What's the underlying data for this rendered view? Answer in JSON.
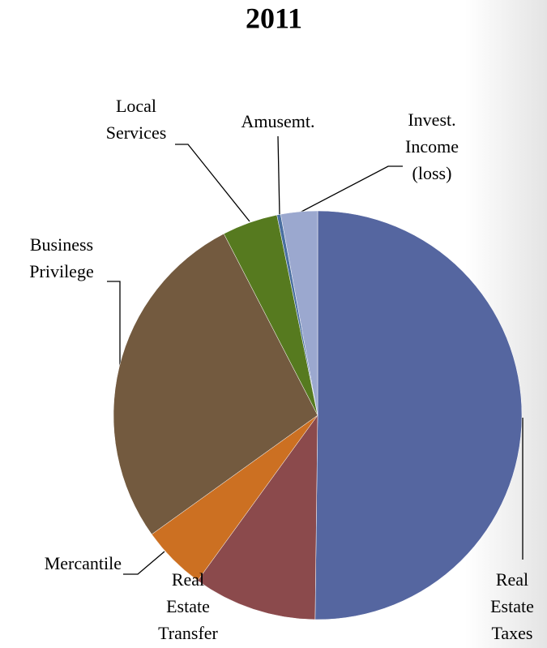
{
  "chart_data": {
    "type": "pie",
    "title": "2011",
    "categories": [
      "Real\nEstate\nTaxes",
      "Real\nEstate\nTransfer",
      "Mercantile",
      "Business\nPrivilege",
      "Local\nServices",
      "Amusemt.",
      "Invest.\nIncome\n(loss)"
    ],
    "values": [
      50.2,
      9.8,
      5.1,
      27.3,
      4.4,
      0.3,
      2.9
    ],
    "colors": [
      "#5566a0",
      "#8b4a4c",
      "#cc7022",
      "#735a3f",
      "#567a1f",
      "#4a6fa0",
      "#9ba8cf"
    ]
  }
}
